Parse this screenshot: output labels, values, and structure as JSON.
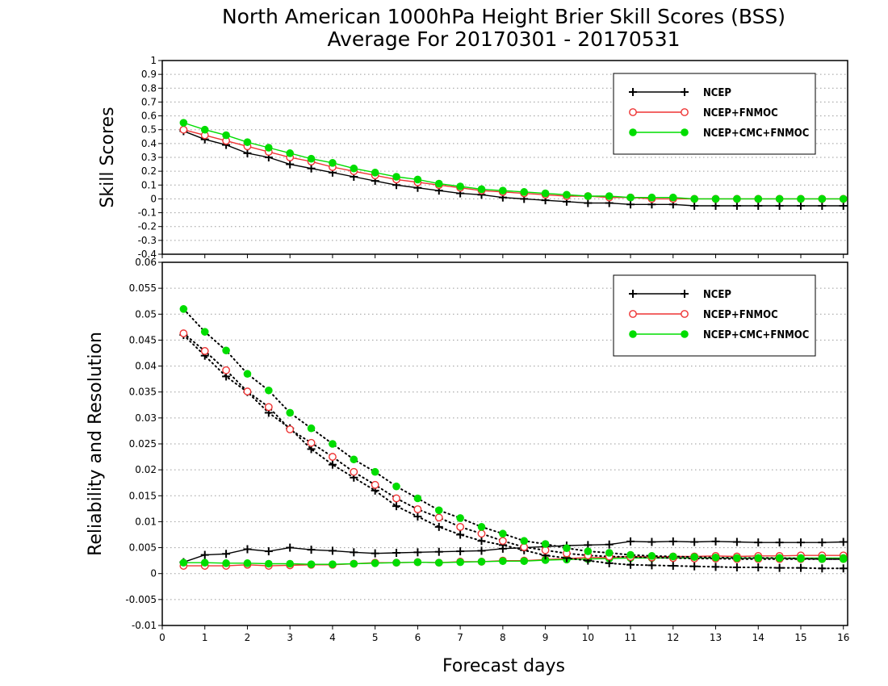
{
  "chart_data": {
    "type": "line",
    "title_line1": "North American 1000hPa Height Brier Skill Scores (BSS)",
    "title_line2": "Average For 20170301 - 20170531",
    "xlabel": "Forecast days",
    "x_ticks": [
      "0",
      "1",
      "2",
      "3",
      "4",
      "5",
      "6",
      "7",
      "8",
      "9",
      "10",
      "11",
      "12",
      "13",
      "14",
      "15",
      "16"
    ],
    "xlim": [
      0,
      16.1
    ],
    "x": [
      0.5,
      1,
      1.5,
      2,
      2.5,
      3,
      3.5,
      4,
      4.5,
      5,
      5.5,
      6,
      6.5,
      7,
      7.5,
      8,
      8.5,
      9,
      9.5,
      10,
      10.5,
      11,
      11.5,
      12,
      12.5,
      13,
      13.5,
      14,
      14.5,
      15,
      15.5,
      16
    ],
    "colors": {
      "NCEP": "#000000",
      "NCEP+FNMOC": "#ee3333",
      "NCEP+CMC+FNMOC": "#00dd00",
      "grid": "#9a9a9a"
    },
    "panels": [
      {
        "ylabel": "Skill Scores",
        "ylim": [
          -0.4,
          1
        ],
        "y_ticks": [
          "1",
          "0.9",
          "0.8",
          "0.7",
          "0.6",
          "0.5",
          "0.4",
          "0.3",
          "0.2",
          "0.1",
          "0",
          "-0.1",
          "-0.2",
          "-0.3",
          "-0.4"
        ],
        "grid": true,
        "legend": {
          "position": "top-right",
          "entries": [
            "NCEP",
            "NCEP+FNMOC",
            "NCEP+CMC+FNMOC"
          ]
        },
        "series": [
          {
            "name": "NCEP",
            "marker": "plus",
            "line": "solid",
            "values": [
              0.49,
              0.43,
              0.39,
              0.33,
              0.3,
              0.25,
              0.22,
              0.19,
              0.16,
              0.13,
              0.1,
              0.08,
              0.06,
              0.04,
              0.03,
              0.01,
              0.0,
              -0.01,
              -0.02,
              -0.03,
              -0.03,
              -0.04,
              -0.04,
              -0.04,
              -0.05,
              -0.05,
              -0.05,
              -0.05,
              -0.05,
              -0.05,
              -0.05,
              -0.05
            ]
          },
          {
            "name": "NCEP+FNMOC",
            "marker": "open-circle",
            "line": "solid",
            "values": [
              0.5,
              0.46,
              0.42,
              0.38,
              0.34,
              0.3,
              0.27,
              0.23,
              0.2,
              0.17,
              0.14,
              0.12,
              0.1,
              0.08,
              0.06,
              0.05,
              0.04,
              0.03,
              0.02,
              0.02,
              0.01,
              0.01,
              0.0,
              0.0,
              0.0,
              0.0,
              0.0,
              0.0,
              0.0,
              0.0,
              0.0,
              0.0
            ]
          },
          {
            "name": "NCEP+CMC+FNMOC",
            "marker": "filled-circle",
            "line": "solid",
            "values": [
              0.55,
              0.5,
              0.46,
              0.41,
              0.37,
              0.33,
              0.29,
              0.26,
              0.22,
              0.19,
              0.16,
              0.14,
              0.11,
              0.09,
              0.07,
              0.06,
              0.05,
              0.04,
              0.03,
              0.02,
              0.02,
              0.01,
              0.01,
              0.01,
              0.0,
              0.0,
              0.0,
              0.0,
              0.0,
              0.0,
              0.0,
              0.0
            ]
          }
        ]
      },
      {
        "ylabel": "Reliability and Resolution",
        "ylim": [
          -0.01,
          0.06
        ],
        "y_ticks": [
          "0.06",
          "0.055",
          "0.05",
          "0.045",
          "0.04",
          "0.035",
          "0.03",
          "0.025",
          "0.02",
          "0.015",
          "0.01",
          "0.005",
          "0",
          "-0.005",
          "-0.01"
        ],
        "grid": true,
        "legend": {
          "position": "top-right",
          "entries": [
            "NCEP",
            "NCEP+FNMOC",
            "NCEP+CMC+FNMOC"
          ]
        },
        "series": [
          {
            "name": "NCEP",
            "kind": "reliability",
            "marker": "plus",
            "line": "solid",
            "values": [
              0.0022,
              0.0036,
              0.0038,
              0.0047,
              0.0043,
              0.005,
              0.0046,
              0.0044,
              0.0041,
              0.0039,
              0.004,
              0.0041,
              0.0042,
              0.0043,
              0.0044,
              0.0048,
              0.005,
              0.0052,
              0.0054,
              0.0055,
              0.0056,
              0.0062,
              0.0061,
              0.0062,
              0.0061,
              0.0062,
              0.0061,
              0.006,
              0.006,
              0.006,
              0.006,
              0.0061
            ]
          },
          {
            "name": "NCEP+FNMOC",
            "kind": "reliability",
            "marker": "open-circle",
            "line": "solid",
            "values": [
              0.0015,
              0.0015,
              0.0015,
              0.0017,
              0.0015,
              0.0016,
              0.0017,
              0.0017,
              0.0019,
              0.0021,
              0.0021,
              0.0022,
              0.0021,
              0.0023,
              0.0023,
              0.0025,
              0.0025,
              0.0027,
              0.0029,
              0.0031,
              0.0031,
              0.0033,
              0.0032,
              0.0033,
              0.0033,
              0.0034,
              0.0033,
              0.0034,
              0.0034,
              0.0035,
              0.0035,
              0.0035
            ]
          },
          {
            "name": "NCEP+CMC+FNMOC",
            "kind": "reliability",
            "marker": "filled-circle",
            "line": "solid",
            "values": [
              0.0021,
              0.0021,
              0.002,
              0.002,
              0.0019,
              0.0019,
              0.0018,
              0.0018,
              0.0019,
              0.002,
              0.0021,
              0.0022,
              0.0021,
              0.0022,
              0.0023,
              0.0024,
              0.0024,
              0.0026,
              0.0027,
              0.0028,
              0.0029,
              0.003,
              0.003,
              0.003,
              0.003,
              0.003,
              0.003,
              0.003,
              0.003,
              0.003,
              0.003,
              0.003
            ]
          },
          {
            "name": "NCEP",
            "kind": "resolution",
            "marker": "plus",
            "line": "dotted",
            "values": [
              0.046,
              0.042,
              0.038,
              0.035,
              0.031,
              0.028,
              0.024,
              0.021,
              0.0185,
              0.016,
              0.013,
              0.011,
              0.009,
              0.0075,
              0.0063,
              0.0055,
              0.0045,
              0.0035,
              0.003,
              0.0025,
              0.002,
              0.0017,
              0.0016,
              0.0015,
              0.0014,
              0.0013,
              0.0012,
              0.0012,
              0.0011,
              0.0011,
              0.001,
              0.001
            ]
          },
          {
            "name": "NCEP+FNMOC",
            "kind": "resolution",
            "marker": "open-circle",
            "line": "dotted",
            "values": [
              0.0463,
              0.0429,
              0.0392,
              0.0351,
              0.0321,
              0.0278,
              0.0252,
              0.0225,
              0.0196,
              0.0171,
              0.0145,
              0.0124,
              0.0108,
              0.009,
              0.0077,
              0.0063,
              0.0051,
              0.0045,
              0.0039,
              0.0035,
              0.0033,
              0.0032,
              0.0031,
              0.003,
              0.0029,
              0.0029,
              0.0028,
              0.0028,
              0.0028,
              0.0028,
              0.0028,
              0.0028
            ]
          },
          {
            "name": "NCEP+CMC+FNMOC",
            "kind": "resolution",
            "marker": "filled-circle",
            "line": "dotted",
            "values": [
              0.051,
              0.0466,
              0.043,
              0.0385,
              0.0353,
              0.031,
              0.028,
              0.025,
              0.022,
              0.0196,
              0.0168,
              0.0145,
              0.0122,
              0.0107,
              0.009,
              0.0077,
              0.0063,
              0.0057,
              0.0049,
              0.0043,
              0.004,
              0.0036,
              0.0034,
              0.0033,
              0.0032,
              0.0031,
              0.003,
              0.003,
              0.003,
              0.0029,
              0.0028,
              0.0028
            ]
          }
        ]
      }
    ]
  }
}
